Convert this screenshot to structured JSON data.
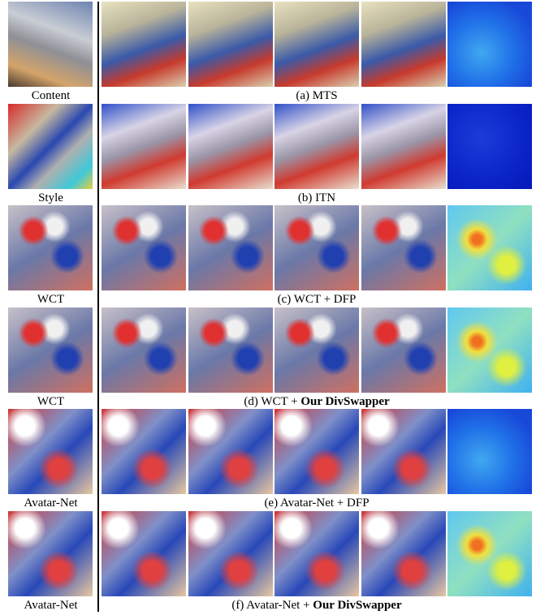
{
  "figure": {
    "rows": [
      {
        "label": "Content",
        "caption": "(a) MTS"
      },
      {
        "label": "Style",
        "caption": "(b) ITN"
      },
      {
        "label": "WCT",
        "caption": "(c) WCT + DFP"
      },
      {
        "label": "WCT",
        "caption": "(d) WCT + ",
        "caption_bold": "Our DivSwapper"
      },
      {
        "label": "Avatar-Net",
        "caption": "(e) Avatar-Net + DFP"
      },
      {
        "label": "Avatar-Net",
        "caption": "(f) Avatar-Net + ",
        "caption_bold": "Our DivSwapper"
      }
    ]
  }
}
